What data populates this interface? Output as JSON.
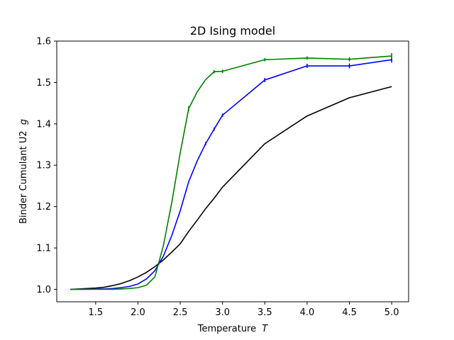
{
  "chart_data": {
    "type": "line",
    "title": "2D Ising model",
    "xlabel_text": "Temperature",
    "xlabel_symbol": "T",
    "ylabel_text": "Binder Cumulant U2",
    "ylabel_symbol": "g",
    "xlim": [
      1.04,
      5.2
    ],
    "ylim": [
      0.97,
      1.6
    ],
    "xticks": [
      "1.5",
      "2.0",
      "2.5",
      "3.0",
      "3.5",
      "4.0",
      "4.5",
      "5.0"
    ],
    "yticks": [
      "1.0",
      "1.1",
      "1.2",
      "1.3",
      "1.4",
      "1.5",
      "1.6"
    ],
    "grid": false,
    "series": [
      {
        "color": "#000000",
        "x": [
          1.2,
          1.3,
          1.4,
          1.5,
          1.6,
          1.7,
          1.8,
          1.9,
          2.0,
          2.1,
          2.2,
          2.3,
          2.4,
          2.5,
          2.6,
          2.7,
          2.8,
          2.9,
          3.0,
          3.5,
          4.0,
          4.5,
          5.0
        ],
        "y": [
          1.0,
          1.001,
          1.002,
          1.003,
          1.005,
          1.009,
          1.014,
          1.021,
          1.03,
          1.041,
          1.055,
          1.071,
          1.09,
          1.11,
          1.14,
          1.167,
          1.195,
          1.22,
          1.247,
          1.352,
          1.419,
          1.463,
          1.49
        ],
        "err": [
          0,
          0,
          0,
          0,
          0,
          0,
          0,
          0,
          0,
          0,
          0,
          0,
          0,
          0,
          0,
          0,
          0,
          0,
          0,
          0,
          0,
          0,
          0
        ]
      },
      {
        "color": "#0000ff",
        "x": [
          1.2,
          1.3,
          1.4,
          1.5,
          1.6,
          1.7,
          1.8,
          1.9,
          2.0,
          2.1,
          2.2,
          2.3,
          2.4,
          2.5,
          2.6,
          2.7,
          2.8,
          2.9,
          3.0,
          3.5,
          4.0,
          4.5,
          5.0
        ],
        "y": [
          1.0,
          1.0,
          1.0,
          1.001,
          1.001,
          1.002,
          1.004,
          1.007,
          1.013,
          1.025,
          1.045,
          1.08,
          1.13,
          1.19,
          1.26,
          1.31,
          1.352,
          1.387,
          1.421,
          1.506,
          1.54,
          1.54,
          1.555
        ],
        "err": [
          0,
          0,
          0,
          0,
          0,
          0,
          0,
          0,
          0,
          0,
          0,
          0,
          0,
          0,
          0,
          0,
          0.004,
          0.004,
          0.004,
          0.005,
          0.005,
          0.006,
          0.007
        ]
      },
      {
        "color": "#008000",
        "x": [
          1.2,
          1.3,
          1.4,
          1.5,
          1.6,
          1.7,
          1.8,
          1.9,
          2.0,
          2.1,
          2.2,
          2.3,
          2.4,
          2.5,
          2.6,
          2.7,
          2.8,
          2.9,
          3.0,
          3.5,
          4.0,
          4.5,
          5.0
        ],
        "y": [
          1.0,
          1.0,
          1.0,
          1.0,
          1.0,
          1.0,
          1.001,
          1.002,
          1.004,
          1.01,
          1.03,
          1.105,
          1.21,
          1.33,
          1.437,
          1.477,
          1.507,
          1.526,
          1.527,
          1.555,
          1.559,
          1.556,
          1.564
        ],
        "err": [
          0,
          0,
          0,
          0,
          0,
          0,
          0,
          0,
          0,
          0,
          0,
          0,
          0,
          0,
          0.006,
          0,
          0,
          0.004,
          0.004,
          0.004,
          0.004,
          0.005,
          0.007
        ]
      }
    ]
  }
}
